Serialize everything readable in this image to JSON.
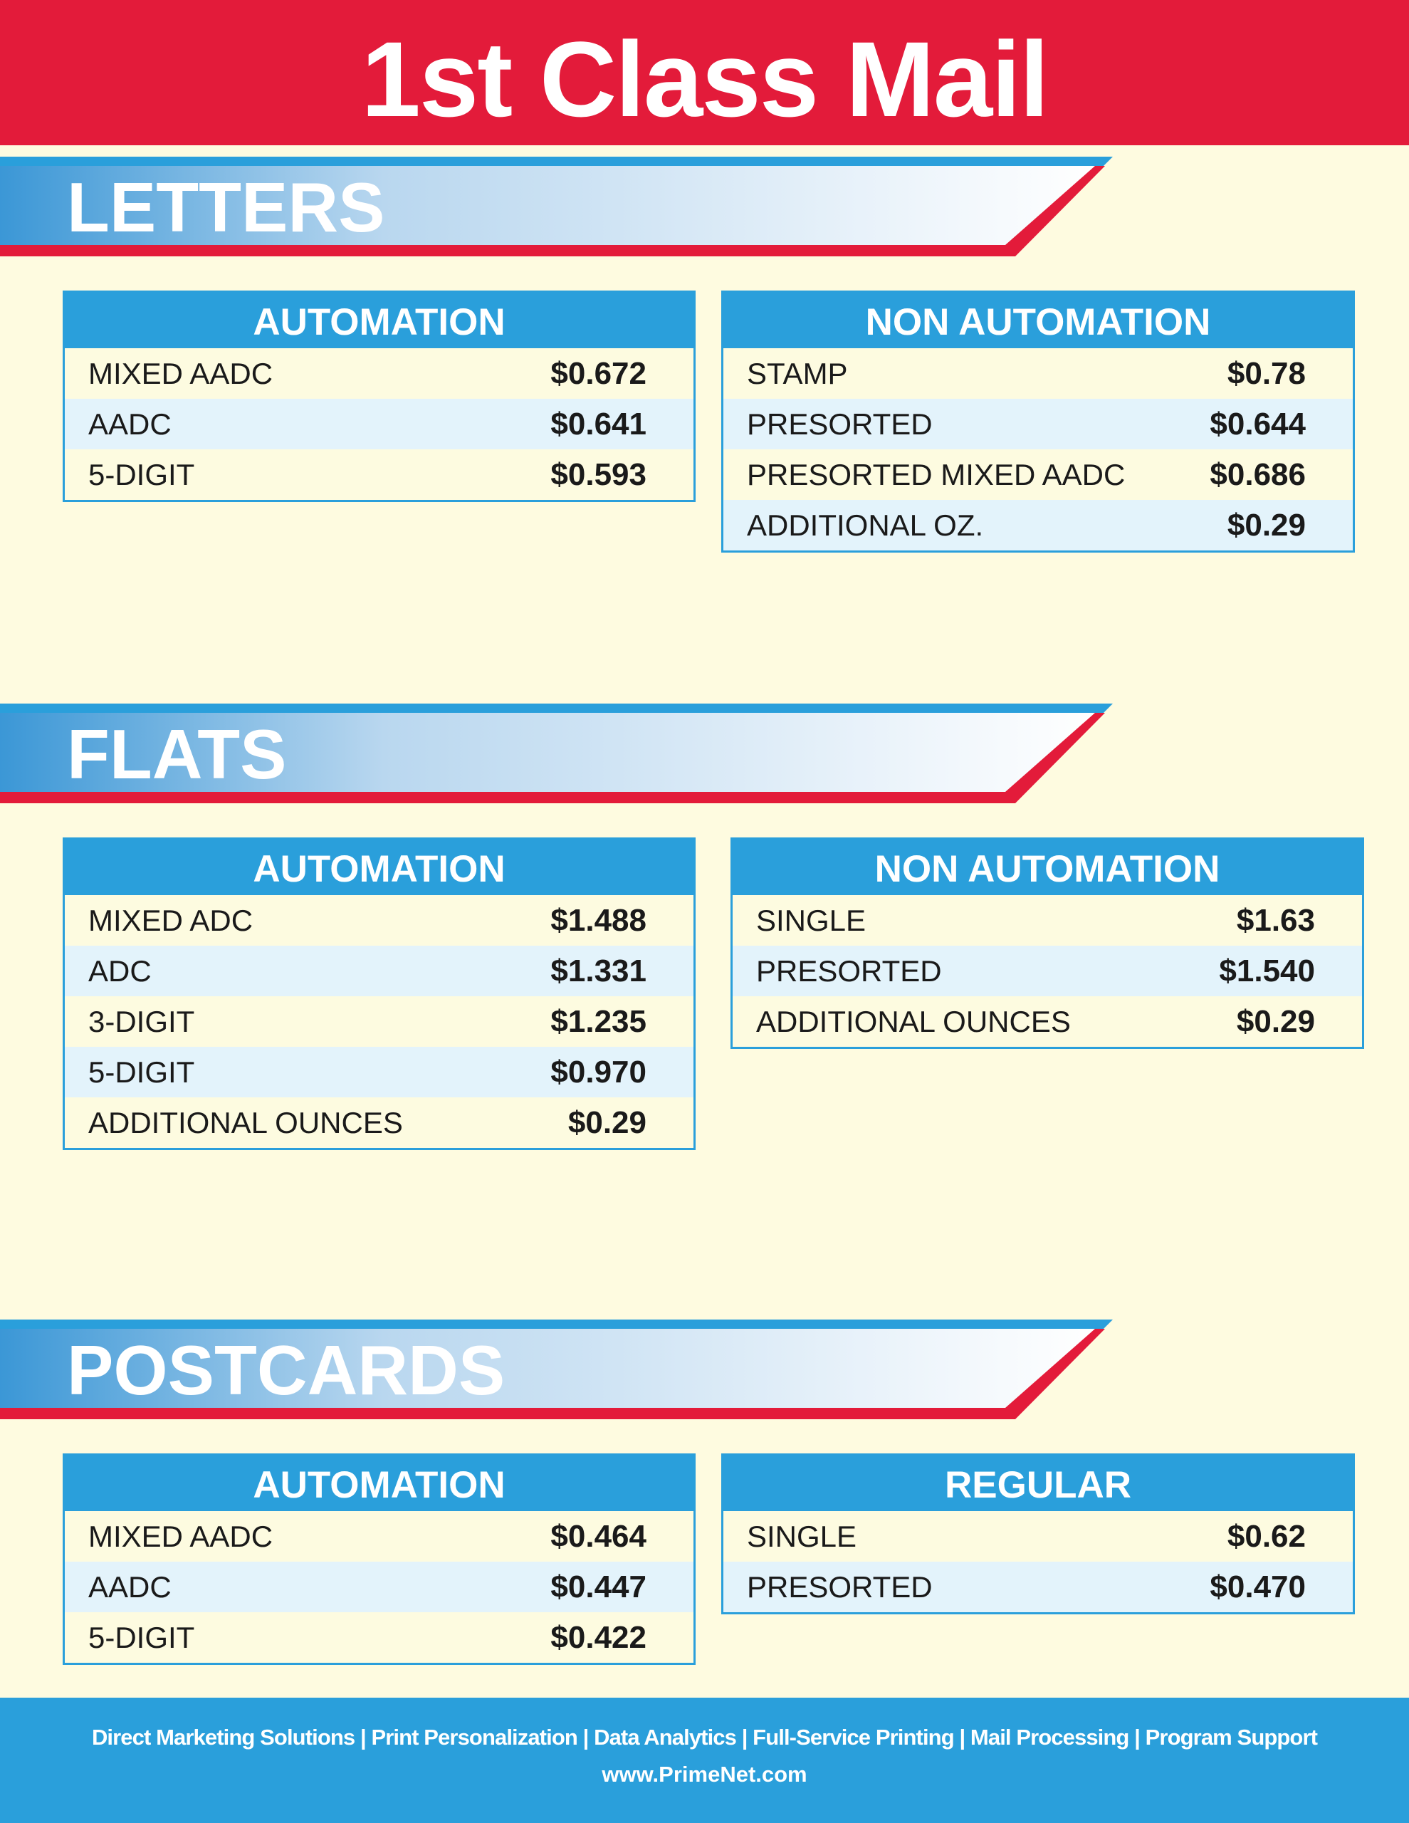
{
  "title": "1st Class Mail",
  "sections": [
    {
      "title": "LETTERS",
      "tables": [
        {
          "header": "AUTOMATION",
          "rows": [
            [
              "MIXED AADC",
              "$0.672"
            ],
            [
              "AADC",
              "$0.641"
            ],
            [
              "5-DIGIT",
              "$0.593"
            ]
          ]
        },
        {
          "header": "NON AUTOMATION",
          "rows": [
            [
              "STAMP",
              "$0.78"
            ],
            [
              "PRESORTED",
              "$0.644"
            ],
            [
              "PRESORTED MIXED AADC",
              "$0.686"
            ],
            [
              "ADDITIONAL OZ.",
              "$0.29"
            ]
          ]
        }
      ]
    },
    {
      "title": "FLATS",
      "tables": [
        {
          "header": "AUTOMATION",
          "rows": [
            [
              "MIXED ADC",
              "$1.488"
            ],
            [
              "ADC",
              "$1.331"
            ],
            [
              "3-DIGIT",
              "$1.235"
            ],
            [
              "5-DIGIT",
              "$0.970"
            ],
            [
              "ADDITIONAL OUNCES",
              "$0.29"
            ]
          ]
        },
        {
          "header": "NON AUTOMATION",
          "rows": [
            [
              "SINGLE",
              "$1.63"
            ],
            [
              "PRESORTED",
              "$1.540"
            ],
            [
              "ADDITIONAL OUNCES",
              "$0.29"
            ]
          ]
        }
      ]
    },
    {
      "title": "POSTCARDS",
      "tables": [
        {
          "header": "AUTOMATION",
          "rows": [
            [
              "MIXED AADC",
              "$0.464"
            ],
            [
              "AADC",
              "$0.447"
            ],
            [
              "5-DIGIT",
              "$0.422"
            ]
          ]
        },
        {
          "header": "REGULAR",
          "rows": [
            [
              "SINGLE",
              "$0.62"
            ],
            [
              "PRESORTED",
              "$0.470"
            ]
          ]
        }
      ]
    }
  ],
  "footer": {
    "services": "Direct Marketing Solutions | Print Personalization | Data Analytics | Full-Service Printing | Mail Processing | Program Support",
    "url": "www.PrimeNet.com"
  }
}
